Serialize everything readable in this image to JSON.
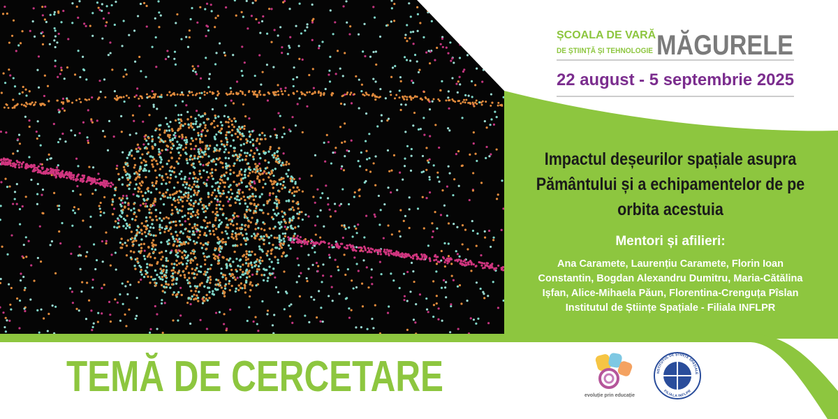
{
  "header": {
    "school_line1": "ȘCOALA DE VARĂ",
    "school_line2": "DE ȘTIINȚĂ ȘI TEHNOLOGIE",
    "location": "MĂGURELE",
    "dates": "22 august - 5 septembrie 2025"
  },
  "topic": {
    "title_lines": [
      "Impactul deșeurilor spațiale asupra",
      "Pământului și a echipamentelor de pe",
      "orbita acestuia"
    ],
    "mentors_heading": "Mentori și afilieri:",
    "mentors_lines": [
      "Ana Caramete, Laurențiu Caramete, Florin Ioan",
      "Constantin, Bogdan Alexandru Dumitru, Maria-Cătălina",
      "Ișfan, Alice-Mihaela Păun, Florentina-Crenguța Pîslan",
      "Institutul de Științe Spațiale - Filiala INFLPR"
    ]
  },
  "footer": {
    "label": "TEMĂ DE CERCETARE",
    "logo_caption": "evoluție prin educație",
    "institute_ring_top": "INSTITUTUL DE ȘTIINȚE SPAȚIALE",
    "institute_ring_bottom": "FILIALA INFLPR"
  }
}
